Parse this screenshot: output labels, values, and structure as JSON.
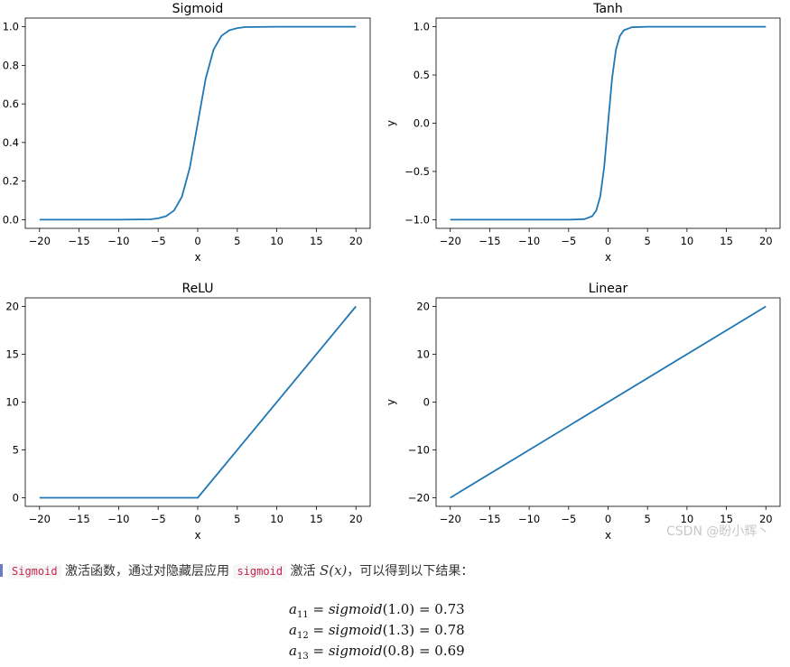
{
  "chart_data": [
    {
      "type": "line",
      "title": "Sigmoid",
      "xlabel": "x",
      "ylabel": "",
      "xlim": [
        -20,
        20
      ],
      "ylim": [
        0,
        1
      ],
      "xticks": [
        "−20",
        "−15",
        "−10",
        "−5",
        "0",
        "5",
        "10",
        "15",
        "20"
      ],
      "yticks": [
        "0.0",
        "0.2",
        "0.4",
        "0.6",
        "0.8",
        "1.0"
      ],
      "color": "#1f77b4",
      "x": [
        -20,
        -10,
        -6,
        -5,
        -4,
        -3,
        -2,
        -1,
        0,
        1,
        2,
        3,
        4,
        5,
        6,
        10,
        20
      ],
      "y": [
        0.0,
        0.0,
        0.002,
        0.007,
        0.018,
        0.047,
        0.119,
        0.269,
        0.5,
        0.731,
        0.881,
        0.953,
        0.982,
        0.993,
        0.998,
        1.0,
        1.0
      ]
    },
    {
      "type": "line",
      "title": "Tanh",
      "xlabel": "x",
      "ylabel": "y",
      "xlim": [
        -20,
        20
      ],
      "ylim": [
        -1,
        1
      ],
      "xticks": [
        "−20",
        "−15",
        "−10",
        "−5",
        "0",
        "5",
        "10",
        "15",
        "20"
      ],
      "yticks": [
        "−1.0",
        "−0.5",
        "0.0",
        "0.5",
        "1.0"
      ],
      "color": "#1f77b4",
      "x": [
        -20,
        -5,
        -3,
        -2,
        -1.5,
        -1,
        -0.5,
        0,
        0.5,
        1,
        1.5,
        2,
        3,
        5,
        20
      ],
      "y": [
        -1.0,
        -1.0,
        -0.995,
        -0.964,
        -0.905,
        -0.762,
        -0.462,
        0.0,
        0.462,
        0.762,
        0.905,
        0.964,
        0.995,
        1.0,
        1.0
      ]
    },
    {
      "type": "line",
      "title": "ReLU",
      "xlabel": "x",
      "ylabel": "",
      "xlim": [
        -20,
        20
      ],
      "ylim": [
        0,
        20
      ],
      "xticks": [
        "−20",
        "−15",
        "−10",
        "−5",
        "0",
        "5",
        "10",
        "15",
        "20"
      ],
      "yticks": [
        "0",
        "5",
        "10",
        "15",
        "20"
      ],
      "color": "#1f77b4",
      "x": [
        -20,
        0,
        20
      ],
      "y": [
        0,
        0,
        20
      ]
    },
    {
      "type": "line",
      "title": "Linear",
      "xlabel": "x",
      "ylabel": "y",
      "xlim": [
        -20,
        20
      ],
      "ylim": [
        -20,
        20
      ],
      "xticks": [
        "−20",
        "−15",
        "−10",
        "−5",
        "0",
        "5",
        "10",
        "15",
        "20"
      ],
      "yticks": [
        "−20",
        "−10",
        "0",
        "10",
        "20"
      ],
      "color": "#1f77b4",
      "x": [
        -20,
        20
      ],
      "y": [
        -20,
        20
      ]
    }
  ],
  "watermark": "CSDN @盼小辉丶",
  "text": {
    "code1": "Sigmoid",
    "part1": "激活函数，通过对隐藏层应用",
    "code2": "sigmoid",
    "part2": "激活",
    "math": "S(x)",
    "part3": "，可以得到以下结果："
  },
  "equations": [
    {
      "var": "a",
      "sub": "11",
      "rhs_fn": "sigmoid",
      "arg": "(1.0)",
      "result": "= 0.73"
    },
    {
      "var": "a",
      "sub": "12",
      "rhs_fn": "sigmoid",
      "arg": "(1.3)",
      "result": "= 0.78"
    },
    {
      "var": "a",
      "sub": "13",
      "rhs_fn": "sigmoid",
      "arg": "(0.8)",
      "result": "= 0.69"
    }
  ]
}
